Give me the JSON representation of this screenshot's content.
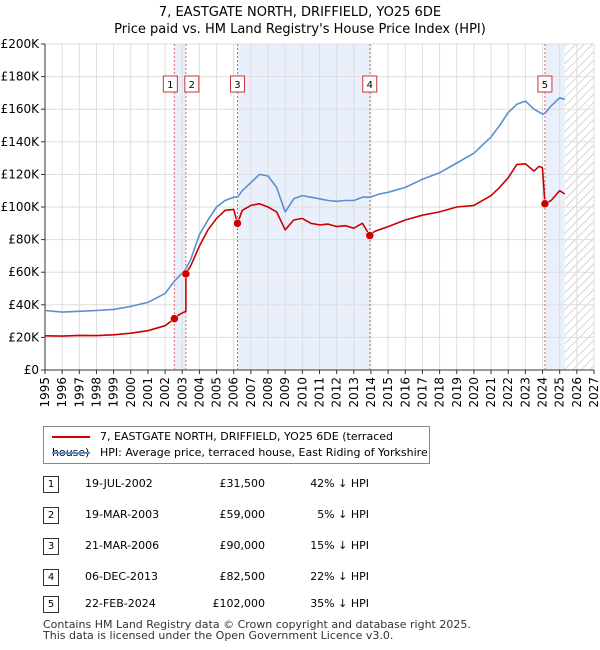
{
  "chart_data": {
    "type": "line",
    "title": "7, EASTGATE NORTH, DRIFFIELD, YO25 6DE",
    "subtitle": "Price paid vs. HM Land Registry's House Price Index (HPI)",
    "xlim": [
      1995,
      2027
    ],
    "ylim": [
      0,
      200000
    ],
    "x_ticks": [
      "1995",
      "1996",
      "1997",
      "1998",
      "1999",
      "2000",
      "2001",
      "2002",
      "2003",
      "2004",
      "2005",
      "2006",
      "2007",
      "2008",
      "2009",
      "2010",
      "2011",
      "2012",
      "2013",
      "2014",
      "2015",
      "2016",
      "2017",
      "2018",
      "2019",
      "2020",
      "2021",
      "2022",
      "2023",
      "2024",
      "2025",
      "2026",
      "2027"
    ],
    "y_ticks": [
      {
        "value": 0,
        "label": "£0"
      },
      {
        "value": 20000,
        "label": "£20K"
      },
      {
        "value": 40000,
        "label": "£40K"
      },
      {
        "value": 60000,
        "label": "£60K"
      },
      {
        "value": 80000,
        "label": "£80K"
      },
      {
        "value": 100000,
        "label": "£100K"
      },
      {
        "value": 120000,
        "label": "£120K"
      },
      {
        "value": 140000,
        "label": "£140K"
      },
      {
        "value": 160000,
        "label": "£160K"
      },
      {
        "value": 180000,
        "label": "£180K"
      },
      {
        "value": 200000,
        "label": "£200K"
      }
    ],
    "grid": true,
    "forecast_from": 2025.3,
    "colors": {
      "property": "#cc0000",
      "hpi": "#5b8fd0",
      "shade": "#eaf0fb",
      "grid": "#dddddd",
      "vline": "#dd6666"
    },
    "series": [
      {
        "name": "7, EASTGATE NORTH, DRIFFIELD, YO25 6DE (terraced house)",
        "key": "property",
        "points": [
          [
            1995.0,
            21000
          ],
          [
            1996.0,
            20800
          ],
          [
            1997.0,
            21200
          ],
          [
            1998.0,
            21100
          ],
          [
            1999.0,
            21600
          ],
          [
            2000.0,
            22600
          ],
          [
            2001.0,
            24100
          ],
          [
            2002.0,
            27200
          ],
          [
            2002.54,
            31500
          ],
          [
            2002.7,
            33000
          ],
          [
            2002.9,
            34500
          ],
          [
            2003.21,
            36000
          ],
          [
            2003.21,
            59000
          ],
          [
            2003.5,
            64000
          ],
          [
            2004.0,
            76000
          ],
          [
            2004.5,
            86000
          ],
          [
            2005.0,
            93000
          ],
          [
            2005.5,
            98000
          ],
          [
            2006.0,
            98500
          ],
          [
            2006.22,
            90000
          ],
          [
            2006.5,
            98000
          ],
          [
            2007.0,
            101000
          ],
          [
            2007.5,
            102000
          ],
          [
            2008.0,
            100000
          ],
          [
            2008.5,
            97000
          ],
          [
            2009.0,
            86000
          ],
          [
            2009.5,
            92000
          ],
          [
            2010.0,
            93000
          ],
          [
            2010.5,
            90000
          ],
          [
            2011.0,
            89000
          ],
          [
            2011.5,
            89500
          ],
          [
            2012.0,
            88000
          ],
          [
            2012.5,
            88500
          ],
          [
            2013.0,
            87000
          ],
          [
            2013.5,
            90000
          ],
          [
            2013.93,
            82500
          ],
          [
            2014.2,
            85000
          ],
          [
            2015.0,
            88000
          ],
          [
            2016.0,
            92000
          ],
          [
            2017.0,
            95000
          ],
          [
            2018.0,
            97000
          ],
          [
            2019.0,
            100000
          ],
          [
            2020.0,
            101000
          ],
          [
            2021.0,
            107000
          ],
          [
            2021.5,
            112000
          ],
          [
            2022.0,
            118000
          ],
          [
            2022.5,
            126000
          ],
          [
            2023.0,
            126500
          ],
          [
            2023.5,
            122000
          ],
          [
            2023.8,
            125000
          ],
          [
            2024.0,
            124000
          ],
          [
            2024.14,
            102000
          ],
          [
            2024.5,
            104000
          ],
          [
            2025.0,
            110000
          ],
          [
            2025.3,
            108000
          ]
        ]
      },
      {
        "name": "HPI: Average price, terraced house, East Riding of Yorkshire",
        "key": "hpi",
        "points": [
          [
            1995.0,
            36500
          ],
          [
            1996.0,
            35500
          ],
          [
            1997.0,
            36000
          ],
          [
            1998.0,
            36500
          ],
          [
            1999.0,
            37200
          ],
          [
            2000.0,
            39000
          ],
          [
            2001.0,
            41500
          ],
          [
            2002.0,
            47000
          ],
          [
            2002.54,
            54500
          ],
          [
            2003.21,
            62000
          ],
          [
            2003.5,
            68000
          ],
          [
            2004.0,
            83000
          ],
          [
            2004.5,
            92000
          ],
          [
            2005.0,
            100000
          ],
          [
            2005.5,
            104000
          ],
          [
            2006.0,
            106000
          ],
          [
            2006.22,
            106000
          ],
          [
            2006.5,
            110000
          ],
          [
            2007.0,
            115000
          ],
          [
            2007.5,
            120000
          ],
          [
            2008.0,
            119000
          ],
          [
            2008.5,
            112000
          ],
          [
            2009.0,
            97000
          ],
          [
            2009.5,
            105000
          ],
          [
            2010.0,
            107000
          ],
          [
            2010.5,
            106000
          ],
          [
            2011.0,
            105000
          ],
          [
            2011.5,
            104000
          ],
          [
            2012.0,
            103500
          ],
          [
            2012.5,
            104000
          ],
          [
            2013.0,
            104000
          ],
          [
            2013.5,
            106000
          ],
          [
            2013.93,
            106000
          ],
          [
            2014.5,
            108000
          ],
          [
            2015.0,
            109000
          ],
          [
            2016.0,
            112000
          ],
          [
            2017.0,
            117000
          ],
          [
            2018.0,
            121000
          ],
          [
            2019.0,
            127000
          ],
          [
            2020.0,
            133000
          ],
          [
            2021.0,
            143000
          ],
          [
            2021.5,
            150000
          ],
          [
            2022.0,
            158000
          ],
          [
            2022.5,
            163000
          ],
          [
            2023.0,
            165000
          ],
          [
            2023.5,
            160000
          ],
          [
            2024.0,
            157000
          ],
          [
            2024.14,
            157500
          ],
          [
            2024.5,
            162000
          ],
          [
            2025.0,
            167000
          ],
          [
            2025.3,
            166000
          ]
        ]
      }
    ],
    "transactions": [
      {
        "id": "1",
        "date": "19-JUL-2002",
        "x": 2002.54,
        "price": 31500,
        "price_label": "£31,500",
        "rel": "42% ↓ HPI"
      },
      {
        "id": "2",
        "date": "19-MAR-2003",
        "x": 2003.21,
        "price": 59000,
        "price_label": "£59,000",
        "rel": "5% ↓ HPI"
      },
      {
        "id": "3",
        "date": "21-MAR-2006",
        "x": 2006.22,
        "price": 90000,
        "price_label": "£90,000",
        "rel": "15% ↓ HPI"
      },
      {
        "id": "4",
        "date": "06-DEC-2013",
        "x": 2013.93,
        "price": 82500,
        "price_label": "£82,500",
        "rel": "22% ↓ HPI"
      },
      {
        "id": "5",
        "date": "22-FEB-2024",
        "x": 2024.14,
        "price": 102000,
        "price_label": "£102,000",
        "rel": "35% ↓ HPI"
      }
    ],
    "shaded_spans": [
      [
        2002.54,
        2003.21
      ],
      [
        2006.22,
        2013.93
      ],
      [
        2024.14,
        2025.3
      ]
    ]
  },
  "legend": {
    "property_label": "7, EASTGATE NORTH, DRIFFIELD, YO25 6DE (terraced house)",
    "hpi_label": "HPI: Average price, terraced house, East Riding of Yorkshire"
  },
  "footer": {
    "line1": "Contains HM Land Registry data © Crown copyright and database right 2025.",
    "line2": "This data is licensed under the Open Government Licence v3.0."
  }
}
